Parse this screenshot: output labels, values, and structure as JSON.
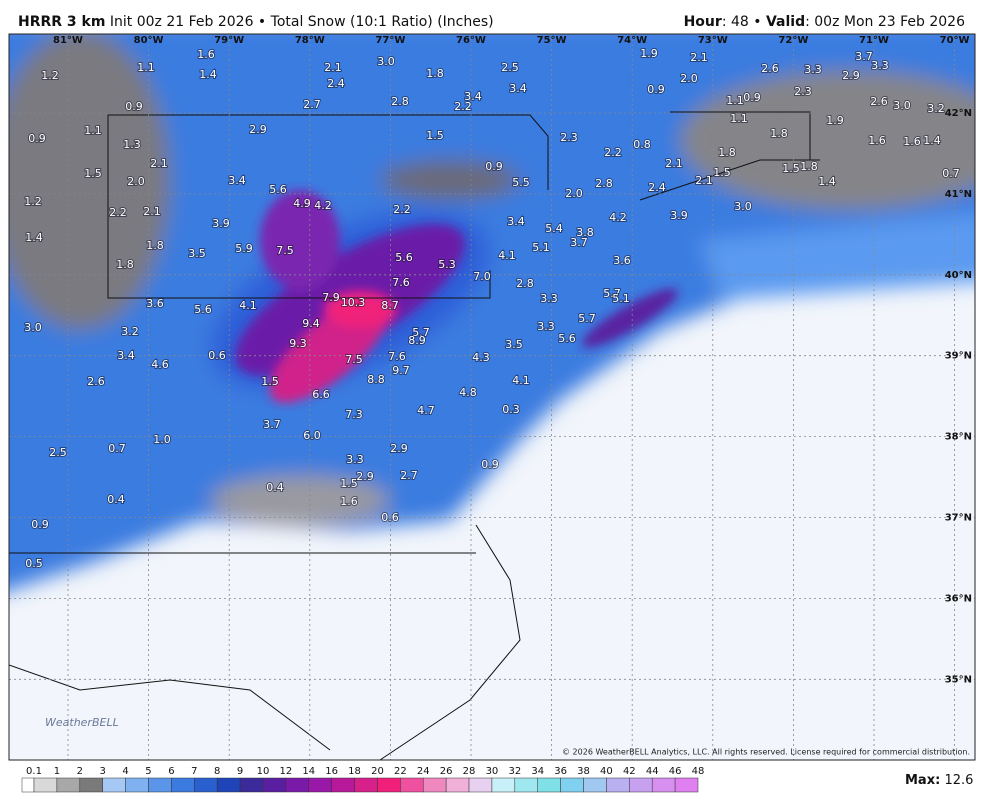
{
  "header": {
    "model": "HRRR 3 km",
    "description": "Init 00z 21 Feb 2026 • Total Snow (10:1 Ratio) (Inches)",
    "hour_label": "Hour",
    "hour_value": ": 48 •",
    "valid_label": "Valid",
    "valid_value": ": 00z Mon 23 Feb 2026"
  },
  "longitudes": [
    "81°W",
    "80°W",
    "79°W",
    "78°W",
    "77°W",
    "76°W",
    "75°W",
    "74°W",
    "73°W",
    "72°W",
    "71°W",
    "70°W"
  ],
  "latitudes": [
    "42°N",
    "41°N",
    "40°N",
    "39°N",
    "38°N",
    "37°N",
    "36°N",
    "35°N"
  ],
  "snow_labels": [
    "1.2",
    "1.1",
    "1.6",
    "1.4",
    "2.1",
    "3.0",
    "1.8",
    "2.5",
    "3.4",
    "2.4",
    "2.7",
    "2.8",
    "2.2",
    "3.4",
    "0.9",
    "0.9",
    "1.1",
    "1.3",
    "2.9",
    "1.5",
    "2.3",
    "2.1",
    "1.5",
    "2.0",
    "3.4",
    "5.6",
    "4.9",
    "4.2",
    "2.2",
    "0.9",
    "5.5",
    "2.0",
    "2.8",
    "2.2",
    "1.2",
    "2.2",
    "2.1",
    "3.9",
    "3.4",
    "5.4",
    "3.8",
    "3.7",
    "5.1",
    "4.2",
    "1.4",
    "1.8",
    "5.9",
    "7.5",
    "3.5",
    "5.6",
    "5.3",
    "7.0",
    "4.1",
    "1.8",
    "7.6",
    "2.8",
    "3.6",
    "3.6",
    "5.6",
    "4.1",
    "7.9",
    "10.3",
    "8.7",
    "9.4",
    "3.3",
    "5.7",
    "5.1",
    "3.0",
    "3.2",
    "5.7",
    "8.9",
    "3.3",
    "5.7",
    "9.3",
    "5.6",
    "3.5",
    "3.4",
    "4.6",
    "0.6",
    "7.5",
    "7.6",
    "9.7",
    "4.3",
    "8.8",
    "1.5",
    "4.1",
    "2.6",
    "6.6",
    "4.8",
    "7.3",
    "4.7",
    "0.3",
    "3.7",
    "6.0",
    "1.0",
    "0.7",
    "2.9",
    "2.5",
    "3.3",
    "2.9",
    "2.7",
    "0.9",
    "1.5",
    "0.4",
    "0.4",
    "1.6",
    "0.6",
    "0.9",
    "0.5",
    "2.1",
    "2.6",
    "3.3",
    "3.7",
    "3.3",
    "2.9",
    "1.9",
    "2.0",
    "0.9",
    "1.1",
    "0.9",
    "2.3",
    "2.6",
    "3.0",
    "3.2",
    "1.1",
    "1.8",
    "1.9",
    "0.8",
    "1.6",
    "1.6",
    "1.4",
    "2.1",
    "1.8",
    "1.5",
    "2.1",
    "1.5",
    "1.8",
    "1.4",
    "2.4",
    "3.0",
    "3.9",
    "0.7"
  ],
  "colorbar": {
    "labels": [
      "0.1",
      "1",
      "2",
      "3",
      "4",
      "5",
      "6",
      "7",
      "8",
      "9",
      "10",
      "12",
      "14",
      "16",
      "18",
      "20",
      "22",
      "24",
      "26",
      "28",
      "30",
      "32",
      "34",
      "36",
      "38",
      "40",
      "42",
      "44",
      "46",
      "48"
    ],
    "max_label": "Max:",
    "max": "12.6"
  },
  "copyright": "© 2026 WeatherBELL Analytics, LLC. All rights reserved. License required for commercial distribution.",
  "logo": "WeatherBELL"
}
